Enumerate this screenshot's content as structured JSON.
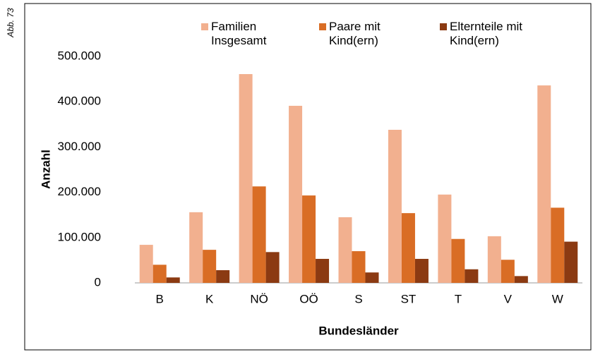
{
  "figure_label": "Abb. 73",
  "chart_data": {
    "type": "bar",
    "x_label": "Bundesländer",
    "y_label": "Anzahl",
    "categories": [
      "B",
      "K",
      "NÖ",
      "OÖ",
      "S",
      "ST",
      "T",
      "V",
      "W"
    ],
    "series": [
      {
        "name": "Familien Insgesamt",
        "color": "#f2b08f",
        "values": [
          84000,
          156000,
          461000,
          391000,
          145000,
          338000,
          195000,
          103000,
          436000
        ]
      },
      {
        "name": "Paare mit Kind(ern)",
        "color": "#d96d25",
        "values": [
          40000,
          73000,
          213000,
          193000,
          70000,
          154000,
          97000,
          51000,
          166000
        ]
      },
      {
        "name": "Elternteile mit Kind(ern)",
        "color": "#8b3a12",
        "values": [
          12000,
          28000,
          68000,
          53000,
          23000,
          53000,
          30000,
          15000,
          91000
        ]
      }
    ],
    "ylim": [
      0,
      500000
    ],
    "yticks": [
      {
        "value": 0,
        "label": "0"
      },
      {
        "value": 100000,
        "label": "100.000"
      },
      {
        "value": 200000,
        "label": "200.000"
      },
      {
        "value": 300000,
        "label": "300.000"
      },
      {
        "value": 400000,
        "label": "400.000"
      },
      {
        "value": 500000,
        "label": "500.000"
      }
    ],
    "legend": "top"
  }
}
